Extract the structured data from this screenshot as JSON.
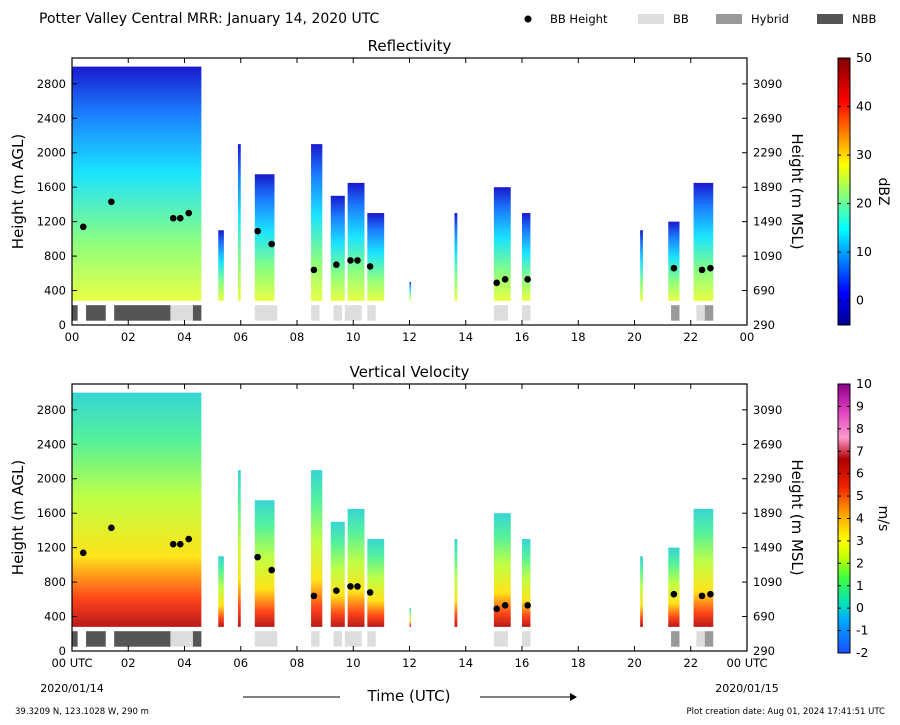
{
  "header": {
    "title": "Potter Valley Central MRR:  January 14, 2020 UTC",
    "legend": [
      {
        "label": "BB Height",
        "kind": "dot",
        "color": "#000000"
      },
      {
        "label": "BB",
        "kind": "swatch",
        "color": "#dddddd"
      },
      {
        "label": "Hybrid",
        "kind": "swatch",
        "color": "#999999"
      },
      {
        "label": "NBB",
        "kind": "swatch",
        "color": "#555555"
      }
    ]
  },
  "footer": {
    "location": "39.3209 N, 123.1028 W, 290 m",
    "creation": "Plot creation date: Aug 01, 2024 17:41:51 UTC",
    "start_date": "2020/01/14",
    "end_date": "2020/01/15",
    "xlabel": "Time (UTC)"
  },
  "chart_data": [
    {
      "type": "heatmap",
      "title": "Reflectivity",
      "ylabel": "Height (m AGL)",
      "y2label": "Height (m MSL)",
      "xlim": [
        0,
        24
      ],
      "ylim": [
        0,
        3100
      ],
      "x_ticks": [
        "00",
        "02",
        "04",
        "06",
        "08",
        "10",
        "12",
        "14",
        "16",
        "18",
        "20",
        "22",
        "00"
      ],
      "y_ticks": [
        0,
        400,
        800,
        1200,
        1600,
        2000,
        2400,
        2800
      ],
      "y2_ticks": [
        290,
        690,
        1090,
        1490,
        1890,
        2290,
        2690,
        3090
      ],
      "colorbar": {
        "label": "dBZ",
        "min": -5,
        "max": 50,
        "ticks": [
          0,
          10,
          20,
          30,
          40,
          50
        ],
        "colormap": "jet"
      },
      "bb_height_points": [
        [
          0.4,
          1140
        ],
        [
          1.4,
          1430
        ],
        [
          3.6,
          1240
        ],
        [
          3.85,
          1240
        ],
        [
          4.15,
          1300
        ],
        [
          6.6,
          1090
        ],
        [
          7.1,
          940
        ],
        [
          8.6,
          640
        ],
        [
          9.4,
          700
        ],
        [
          9.9,
          750
        ],
        [
          10.15,
          750
        ],
        [
          10.6,
          680
        ],
        [
          15.1,
          490
        ],
        [
          15.4,
          530
        ],
        [
          16.2,
          530
        ],
        [
          21.4,
          660
        ],
        [
          22.4,
          640
        ],
        [
          22.7,
          660
        ]
      ],
      "bb_type_segments": [
        [
          0.0,
          0.2,
          "NBB"
        ],
        [
          0.5,
          1.2,
          "NBB"
        ],
        [
          1.5,
          3.5,
          "NBB"
        ],
        [
          3.5,
          4.3,
          "BB"
        ],
        [
          4.3,
          4.6,
          "NBB"
        ],
        [
          6.5,
          6.9,
          "BB"
        ],
        [
          6.9,
          7.3,
          "BB"
        ],
        [
          8.5,
          8.8,
          "BB"
        ],
        [
          9.3,
          9.6,
          "BB"
        ],
        [
          9.7,
          10.3,
          "BB"
        ],
        [
          10.5,
          10.8,
          "BB"
        ],
        [
          15.0,
          15.5,
          "BB"
        ],
        [
          16.0,
          16.3,
          "BB"
        ],
        [
          21.3,
          21.6,
          "Hybrid"
        ],
        [
          22.2,
          22.5,
          "BB"
        ],
        [
          22.5,
          22.8,
          "Hybrid"
        ]
      ],
      "echo_columns": [
        [
          0.0,
          4.6,
          3000
        ],
        [
          5.2,
          5.4,
          1100
        ],
        [
          5.9,
          6.0,
          2100
        ],
        [
          6.5,
          7.2,
          1750
        ],
        [
          8.5,
          8.9,
          2100
        ],
        [
          9.2,
          9.7,
          1500
        ],
        [
          9.8,
          10.4,
          1650
        ],
        [
          10.5,
          11.1,
          1300
        ],
        [
          12.0,
          12.05,
          500
        ],
        [
          13.6,
          13.7,
          1300
        ],
        [
          15.0,
          15.6,
          1600
        ],
        [
          16.0,
          16.3,
          1300
        ],
        [
          20.2,
          20.3,
          1100
        ],
        [
          21.2,
          21.6,
          1200
        ],
        [
          22.1,
          22.8,
          1650
        ]
      ]
    },
    {
      "type": "heatmap",
      "title": "Vertical Velocity",
      "ylabel": "Height (m AGL)",
      "y2label": "Height (m MSL)",
      "xlim": [
        0,
        24
      ],
      "ylim": [
        0,
        3100
      ],
      "x_ticks": [
        "00 UTC",
        "02",
        "04",
        "06",
        "08",
        "10",
        "12",
        "14",
        "16",
        "18",
        "20",
        "22",
        "00 UTC"
      ],
      "y_ticks": [
        0,
        400,
        800,
        1200,
        1600,
        2000,
        2400,
        2800
      ],
      "y2_ticks": [
        290,
        690,
        1090,
        1490,
        1890,
        2290,
        2690,
        3090
      ],
      "colorbar": {
        "label": "m/s",
        "min": -2,
        "max": 10,
        "ticks": [
          -2,
          -1,
          0,
          1,
          2,
          3,
          4,
          5,
          6,
          7,
          8,
          9,
          10
        ]
      },
      "bb_height_points": [
        [
          0.4,
          1140
        ],
        [
          1.4,
          1430
        ],
        [
          3.6,
          1240
        ],
        [
          3.85,
          1240
        ],
        [
          4.15,
          1300
        ],
        [
          6.6,
          1090
        ],
        [
          7.1,
          940
        ],
        [
          8.6,
          640
        ],
        [
          9.4,
          700
        ],
        [
          9.9,
          750
        ],
        [
          10.15,
          750
        ],
        [
          10.6,
          680
        ],
        [
          15.1,
          490
        ],
        [
          15.4,
          530
        ],
        [
          16.2,
          530
        ],
        [
          21.4,
          660
        ],
        [
          22.4,
          640
        ],
        [
          22.7,
          660
        ]
      ],
      "bb_type_segments": [
        [
          0.0,
          0.2,
          "NBB"
        ],
        [
          0.5,
          1.2,
          "NBB"
        ],
        [
          1.5,
          3.5,
          "NBB"
        ],
        [
          3.5,
          4.3,
          "BB"
        ],
        [
          4.3,
          4.6,
          "NBB"
        ],
        [
          6.5,
          6.9,
          "BB"
        ],
        [
          6.9,
          7.3,
          "BB"
        ],
        [
          8.5,
          8.8,
          "BB"
        ],
        [
          9.3,
          9.6,
          "BB"
        ],
        [
          9.7,
          10.3,
          "BB"
        ],
        [
          10.5,
          10.8,
          "BB"
        ],
        [
          15.0,
          15.5,
          "BB"
        ],
        [
          16.0,
          16.3,
          "BB"
        ],
        [
          21.3,
          21.6,
          "Hybrid"
        ],
        [
          22.2,
          22.5,
          "BB"
        ],
        [
          22.5,
          22.8,
          "Hybrid"
        ]
      ],
      "echo_columns": [
        [
          0.0,
          4.6,
          3000
        ],
        [
          5.2,
          5.4,
          1100
        ],
        [
          5.9,
          6.0,
          2100
        ],
        [
          6.5,
          7.2,
          1750
        ],
        [
          8.5,
          8.9,
          2100
        ],
        [
          9.2,
          9.7,
          1500
        ],
        [
          9.8,
          10.4,
          1650
        ],
        [
          10.5,
          11.1,
          1300
        ],
        [
          12.0,
          12.05,
          500
        ],
        [
          13.6,
          13.7,
          1300
        ],
        [
          15.0,
          15.6,
          1600
        ],
        [
          16.0,
          16.3,
          1300
        ],
        [
          20.2,
          20.3,
          1100
        ],
        [
          21.2,
          21.6,
          1200
        ],
        [
          22.1,
          22.8,
          1650
        ]
      ]
    }
  ]
}
